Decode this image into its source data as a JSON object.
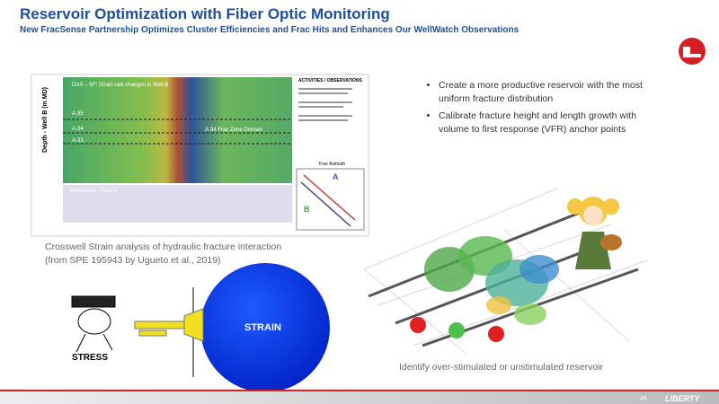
{
  "header": {
    "title": "Reservoir Optimization with Fiber Optic Monitoring",
    "subtitle": "New FracSense Partnership Optimizes Cluster Efficiencies and Frac Hits and Enhances Our WellWatch Observations"
  },
  "strain_figure": {
    "panel_label": "DAS – SF: Strain rate changes in Well B",
    "y_axis": "Depth - Well B (m MD)",
    "stages": [
      "A-35",
      "A-34",
      "A-33"
    ],
    "zone_label": "A-34 Frac Zone Domain",
    "sim_label": "Simulation – Well A",
    "activities_title": "ACTIVITIES / OBSERVATIONS",
    "azimuth_title": "Frac Azimuth",
    "well_a": "A",
    "well_b": "B"
  },
  "strain_caption": [
    "Crosswell Strain analysis of hydraulic fracture interaction",
    "(from SPE 195943 by Ugueto et al., 2019)"
  ],
  "bullets": [
    "Create a more productive reservoir with the most uniform fracture distribution",
    "Calibrate fracture height and length growth with volume to first response (VFR) anchor points"
  ],
  "cartoon": {
    "strain": "STRAIN",
    "stress": "STRESS"
  },
  "reservoir_caption": "Identify over-stimulated or unstimulated reservoir",
  "footer": {
    "page": "46",
    "brand": "LIBERTY"
  }
}
